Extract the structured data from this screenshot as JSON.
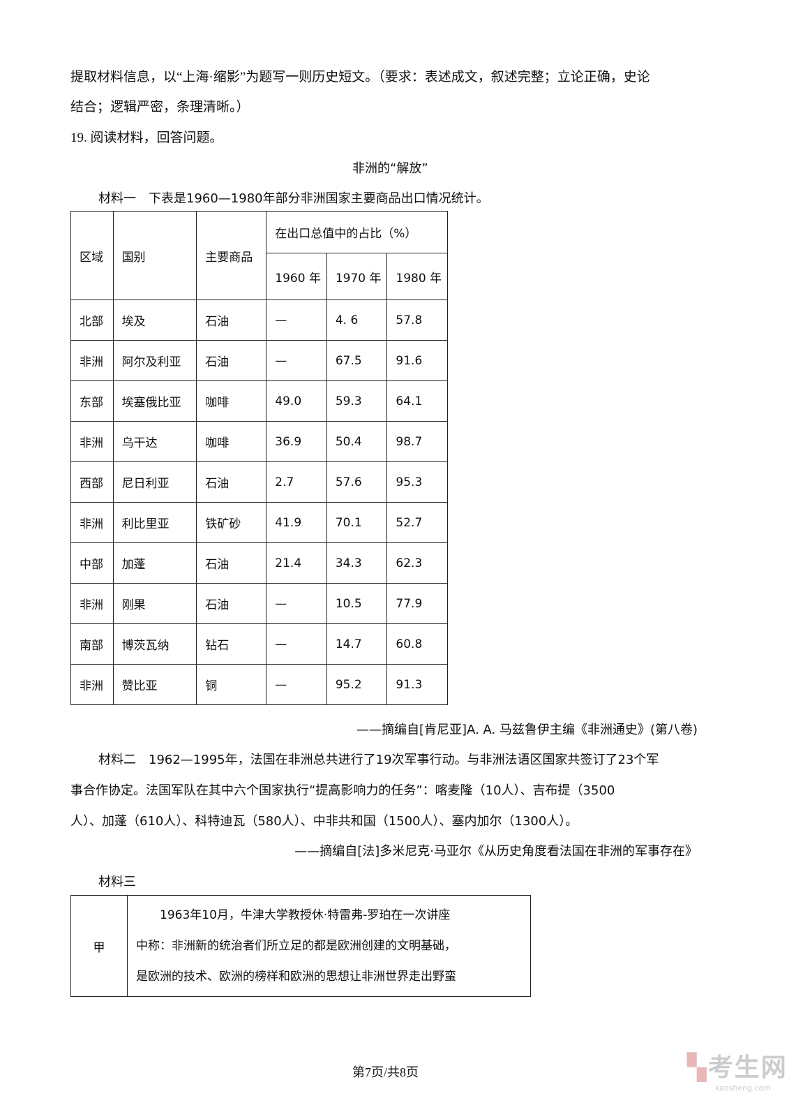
{
  "intro": {
    "line1": "提取材料信息，以“上海·缩影”为题写一则历史短文。（要求：表述成文，叙述完整；立论正确，史论",
    "line2": "结合；逻辑严密，条理清晰。）"
  },
  "question": "19. 阅读材料，回答问题。",
  "title": "非洲的“解放”",
  "material1": {
    "text": "材料一　下表是1960—1980年部分非洲国家主要商品出口情况统计。",
    "headers": {
      "region": "区域",
      "country": "国别",
      "goods": "主要商品",
      "share": "在出口总值中的占比（%）",
      "years": [
        "1960 年",
        "1970 年",
        "1980 年"
      ]
    },
    "rows": [
      {
        "region": "北部",
        "country": "埃及",
        "goods": "石油",
        "v": [
          "—",
          "4. 6",
          "57.8"
        ]
      },
      {
        "region": "非洲",
        "country": "阿尔及利亚",
        "goods": "石油",
        "v": [
          "—",
          "67.5",
          "91.6"
        ]
      },
      {
        "region": "东部",
        "country": "埃塞俄比亚",
        "goods": "咖啡",
        "v": [
          "49.0",
          "59.3",
          "64.1"
        ]
      },
      {
        "region": "非洲",
        "country": "乌干达",
        "goods": "咖啡",
        "v": [
          "36.9",
          "50.4",
          "98.7"
        ]
      },
      {
        "region": "西部",
        "country": "尼日利亚",
        "goods": "石油",
        "v": [
          "2.7",
          "57.6",
          "95.3"
        ]
      },
      {
        "region": "非洲",
        "country": "利比里亚",
        "goods": "铁矿砂",
        "v": [
          "41.9",
          "70.1",
          "52.7"
        ]
      },
      {
        "region": "中部",
        "country": "加蓬",
        "goods": "石油",
        "v": [
          "21.4",
          "34.3",
          "62.3"
        ]
      },
      {
        "region": "非洲",
        "country": "刚果",
        "goods": "石油",
        "v": [
          "—",
          "10.5",
          "77.9"
        ]
      },
      {
        "region": "南部",
        "country": "博茨瓦纳",
        "goods": "钻石",
        "v": [
          "—",
          "14.7",
          "60.8"
        ]
      },
      {
        "region": "非洲",
        "country": "赞比亚",
        "goods": "铜",
        "v": [
          "—",
          "95.2",
          "91.3"
        ]
      }
    ],
    "source": "——摘编自[肯尼亚]A. A. 马兹鲁伊主编《非洲通史》(第八卷)"
  },
  "material2": {
    "line1": "材料二　1962—1995年，法国在非洲总共进行了19次军事行动。与非洲法语区国家共签订了23个军",
    "line2": "事合作协定。法国军队在其中六个国家执行“提高影响力的任务”：喀麦隆（10人）、吉布提（3500",
    "line3": "人）、加蓬（610人）、科特迪瓦（580人）、中非共和国（1500人）、塞内加尔（1300人）。",
    "source": "——摘编自[法]多米尼克·马亚尔《从历史角度看法国在非洲的军事存在》"
  },
  "material3": {
    "label": "材料三",
    "row_label": "甲",
    "lines": [
      "　　1963年10月，牛津大学教授休·特雷弗-罗珀在一次讲座",
      "中称：非洲新的统治者们所立足的都是欧洲创建的文明基础，",
      "是欧洲的技术、欧洲的榜样和欧洲的思想让非洲世界走出野蛮"
    ]
  },
  "footer": "第7页/共8页",
  "watermark": {
    "name": "考生网",
    "url": "kaosheng.com"
  }
}
